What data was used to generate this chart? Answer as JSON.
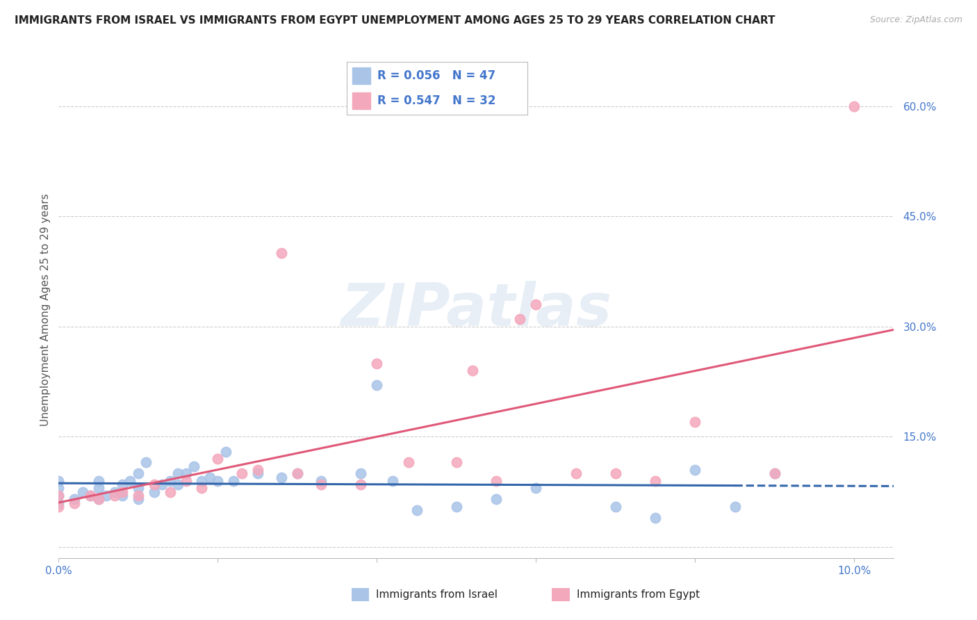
{
  "title": "IMMIGRANTS FROM ISRAEL VS IMMIGRANTS FROM EGYPT UNEMPLOYMENT AMONG AGES 25 TO 29 YEARS CORRELATION CHART",
  "source": "Source: ZipAtlas.com",
  "ylabel": "Unemployment Among Ages 25 to 29 years",
  "xlim": [
    0.0,
    0.105
  ],
  "ylim": [
    -0.015,
    0.66
  ],
  "xtick_positions": [
    0.0,
    0.02,
    0.04,
    0.06,
    0.08,
    0.1
  ],
  "xtick_labels": [
    "0.0%",
    "",
    "",
    "",
    "",
    "10.0%"
  ],
  "ytick_positions": [
    0.0,
    0.15,
    0.3,
    0.45,
    0.6
  ],
  "ytick_labels": [
    "",
    "15.0%",
    "30.0%",
    "45.0%",
    "60.0%"
  ],
  "israel_scatter_color": "#aac4e8",
  "egypt_scatter_color": "#f4a8bc",
  "israel_line_color": "#3366aa",
  "egypt_line_color": "#e05878",
  "israel_R": 0.056,
  "israel_N": 47,
  "egypt_R": 0.547,
  "egypt_N": 32,
  "grid_color": "#cccccc",
  "bg_color": "#ffffff",
  "title_color": "#222222",
  "source_color": "#aaaaaa",
  "tick_color": "#4477cc",
  "ylabel_color": "#555555",
  "legend_text_color": "#4477cc",
  "bottom_label_color": "#222222",
  "legend_label_israel": "Immigrants from Israel",
  "legend_label_egypt": "Immigrants from Egypt",
  "watermark_text": "ZIPatlas",
  "israel_x": [
    0.0,
    0.0,
    0.0,
    0.0,
    0.002,
    0.003,
    0.004,
    0.005,
    0.005,
    0.005,
    0.006,
    0.007,
    0.008,
    0.008,
    0.009,
    0.01,
    0.01,
    0.01,
    0.011,
    0.012,
    0.013,
    0.014,
    0.015,
    0.015,
    0.016,
    0.017,
    0.018,
    0.019,
    0.02,
    0.021,
    0.022,
    0.025,
    0.028,
    0.03,
    0.033,
    0.038,
    0.04,
    0.042,
    0.045,
    0.05,
    0.055,
    0.06,
    0.07,
    0.075,
    0.08,
    0.085,
    0.09
  ],
  "israel_y": [
    0.06,
    0.07,
    0.08,
    0.09,
    0.065,
    0.075,
    0.07,
    0.065,
    0.08,
    0.09,
    0.07,
    0.075,
    0.07,
    0.085,
    0.09,
    0.065,
    0.08,
    0.1,
    0.115,
    0.075,
    0.085,
    0.09,
    0.085,
    0.1,
    0.1,
    0.11,
    0.09,
    0.095,
    0.09,
    0.13,
    0.09,
    0.1,
    0.095,
    0.1,
    0.09,
    0.1,
    0.22,
    0.09,
    0.05,
    0.055,
    0.065,
    0.08,
    0.055,
    0.04,
    0.105,
    0.055,
    0.1
  ],
  "egypt_x": [
    0.0,
    0.0,
    0.002,
    0.004,
    0.005,
    0.007,
    0.008,
    0.01,
    0.012,
    0.014,
    0.016,
    0.018,
    0.02,
    0.023,
    0.025,
    0.028,
    0.03,
    0.033,
    0.038,
    0.04,
    0.044,
    0.05,
    0.052,
    0.055,
    0.058,
    0.06,
    0.065,
    0.07,
    0.075,
    0.08,
    0.09,
    0.1
  ],
  "egypt_y": [
    0.055,
    0.07,
    0.06,
    0.07,
    0.065,
    0.07,
    0.075,
    0.07,
    0.085,
    0.075,
    0.09,
    0.08,
    0.12,
    0.1,
    0.105,
    0.4,
    0.1,
    0.085,
    0.085,
    0.25,
    0.115,
    0.115,
    0.24,
    0.09,
    0.31,
    0.33,
    0.1,
    0.1,
    0.09,
    0.17,
    0.1,
    0.6
  ]
}
